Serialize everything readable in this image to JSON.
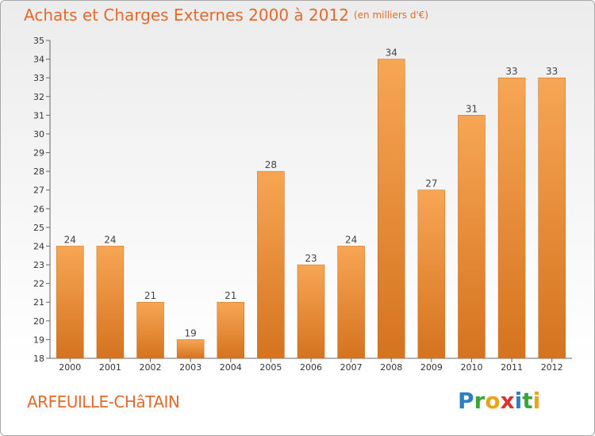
{
  "header": {
    "title": "Achats et Charges Externes 2000 à 2012",
    "unit": "(en milliers d'€)"
  },
  "footer": {
    "commune": "ARFEUILLE-CHâTAIN",
    "logo_letters": [
      {
        "char": "P",
        "color": "#2d7fc1"
      },
      {
        "char": "r",
        "color": "#3aa63a"
      },
      {
        "char": "o",
        "color": "#e8a317"
      },
      {
        "char": "x",
        "color": "#d9342b"
      },
      {
        "char": "i",
        "color": "#2d7fc1"
      },
      {
        "char": "t",
        "color": "#3aa63a"
      },
      {
        "char": "i",
        "color": "#e8a317"
      }
    ]
  },
  "colors": {
    "bar_top": "#f7a654",
    "bar_bottom": "#d5731f",
    "accent": "#e26a2c"
  },
  "chart_data": {
    "type": "bar",
    "title": "Achats et Charges Externes 2000 à 2012",
    "subtitle": "(en milliers d'€)",
    "categories": [
      "2000",
      "2001",
      "2002",
      "2003",
      "2004",
      "2005",
      "2006",
      "2007",
      "2008",
      "2009",
      "2010",
      "2011",
      "2012"
    ],
    "values": [
      24,
      24,
      21,
      19,
      21,
      28,
      23,
      24,
      34,
      27,
      31,
      33,
      33
    ],
    "ylim": [
      18,
      35
    ],
    "ytick_step": 1,
    "grid": false
  }
}
